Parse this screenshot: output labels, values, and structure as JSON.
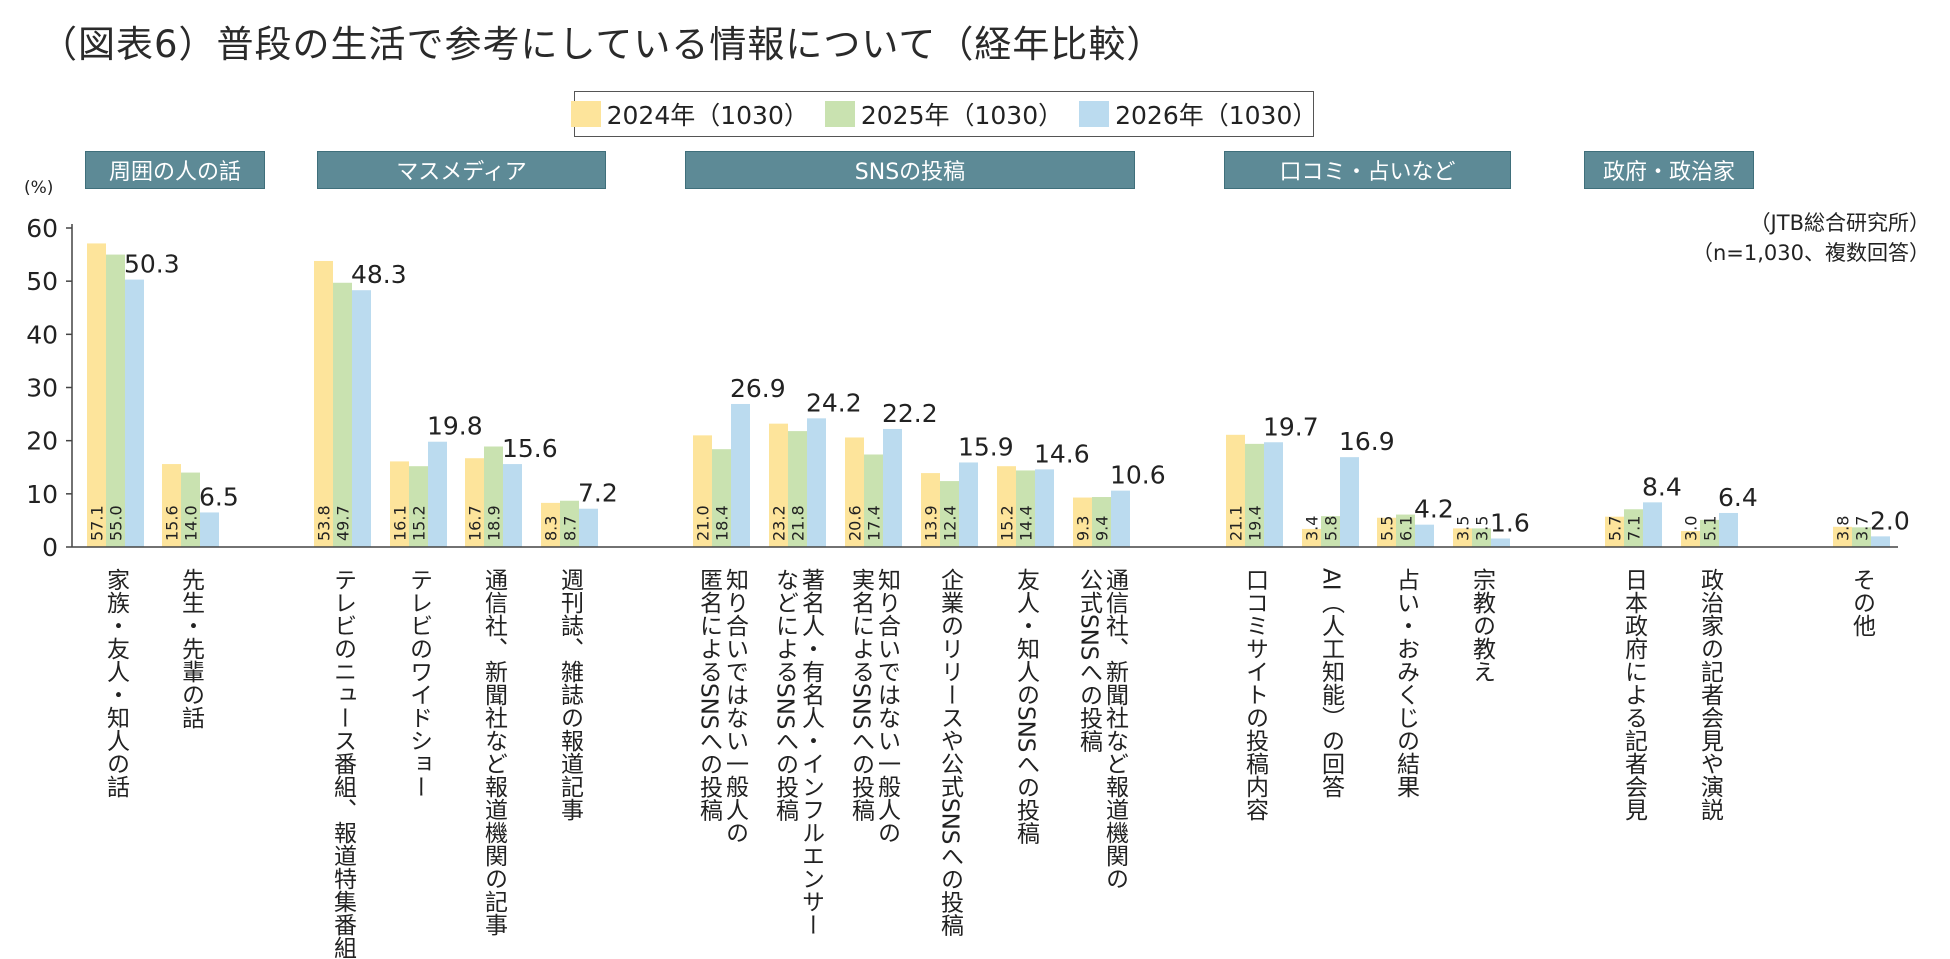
{
  "title": "（図表6）普段の生活で参考にしている情報について（経年比較）",
  "unit": "(%)",
  "source_lines": [
    "（JTB総合研究所）",
    "（n=1,030、複数回答）"
  ],
  "group_tags": [
    "周囲の人の話",
    "マスメディア",
    "SNSの投稿",
    "口コミ・占いなど",
    "政府・政治家"
  ],
  "colors": {
    "s2024": "#fde49b",
    "s2025": "#c9e2b0",
    "s2026": "#bbdbef",
    "tag": "#5d8a96"
  },
  "chart_data": {
    "type": "bar",
    "title": "（図表6）普段の生活で参考にしている情報について（経年比較）",
    "ylabel": "(%)",
    "ylim": [
      0,
      60
    ],
    "yticks": [
      0,
      10,
      20,
      30,
      40,
      50,
      60
    ],
    "legend_position": "top-center",
    "categories": [
      "家族・友人・知人の話",
      "先生・先輩の話",
      "テレビのニュース番組、報道特集番組",
      "テレビのワイドショー",
      "通信社、新聞社など報道機関の記事",
      "週刊誌、雑誌の報道記事",
      "知り合いではない一般人の匿名によるSNSへの投稿",
      "著名人・有名人・インフルエンサーなどによるSNSへの投稿",
      "知り合いではない一般人の実名によるSNSへの投稿",
      "企業のリリースや公式SNSへの投稿",
      "友人・知人のSNSへの投稿",
      "通信社、新聞社など報道機関の公式SNSへの投稿",
      "口コミサイトの投稿内容",
      "AI（人工知能）の回答",
      "占い・おみくじの結果",
      "宗教の教え",
      "日本政府による記者会見",
      "政治家の記者会見や演説",
      "その他"
    ],
    "category_lines": [
      [
        "家族・友人・知人の話"
      ],
      [
        "先生・先輩の話"
      ],
      [
        "テレビのニュース番組、報道特集番組"
      ],
      [
        "テレビのワイドショー"
      ],
      [
        "通信社、新聞社など報道機関の記事"
      ],
      [
        "週刊誌、雑誌の報道記事"
      ],
      [
        "知り合いではない一般人の",
        "匿名によるSNSへの投稿"
      ],
      [
        "著名人・有名人・インフルエンサー",
        "などによるSNSへの投稿"
      ],
      [
        "知り合いではない一般人の",
        "実名によるSNSへの投稿"
      ],
      [
        "企業のリリースや公式SNSへの投稿"
      ],
      [
        "友人・知人のSNSへの投稿"
      ],
      [
        "通信社、新聞社など報道機関の",
        "公式SNSへの投稿"
      ],
      [
        "口コミサイトの投稿内容"
      ],
      [
        "AI（人工知能）の回答"
      ],
      [
        "占い・おみくじの結果"
      ],
      [
        "宗教の教え"
      ],
      [
        "日本政府による記者会見"
      ],
      [
        "政治家の記者会見や演説"
      ],
      [
        "その他"
      ]
    ],
    "series": [
      {
        "name": "2024年（1030）",
        "values": [
          57.1,
          15.6,
          53.8,
          16.1,
          16.7,
          8.3,
          21.0,
          23.2,
          20.6,
          13.9,
          15.2,
          9.3,
          21.1,
          3.4,
          5.5,
          3.5,
          5.7,
          3.0,
          3.8
        ]
      },
      {
        "name": "2025年（1030）",
        "values": [
          55.0,
          14.0,
          49.7,
          15.2,
          18.9,
          8.7,
          18.4,
          21.8,
          17.4,
          12.4,
          14.4,
          9.4,
          19.4,
          5.8,
          6.1,
          3.5,
          7.1,
          5.1,
          3.7
        ]
      },
      {
        "name": "2026年（1030）",
        "values": [
          50.3,
          6.5,
          48.3,
          19.8,
          15.6,
          7.2,
          26.9,
          24.2,
          22.2,
          15.9,
          14.6,
          10.6,
          19.7,
          16.9,
          4.2,
          1.6,
          8.4,
          6.4,
          2.0
        ]
      }
    ]
  }
}
